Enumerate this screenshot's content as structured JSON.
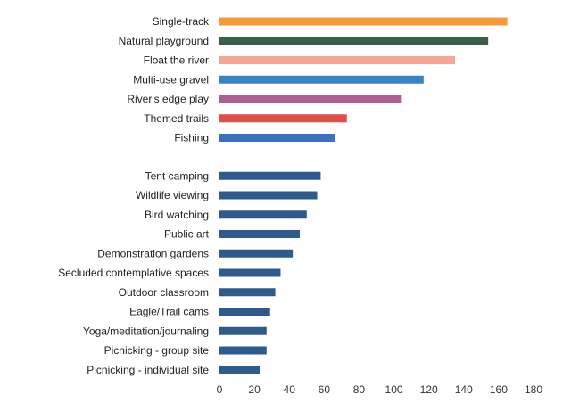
{
  "chart_data": {
    "type": "bar",
    "orientation": "horizontal",
    "title": "",
    "xlabel": "",
    "ylabel": "",
    "xlim": [
      0,
      180
    ],
    "xticks": [
      0,
      20,
      40,
      60,
      80,
      100,
      120,
      140,
      160,
      180
    ],
    "grid": false,
    "legend": "none",
    "groups": [
      {
        "bars": [
          {
            "label": "Single-track",
            "value": 165,
            "color": "#f59a38"
          },
          {
            "label": "Natural playground",
            "value": 154,
            "color": "#3a5e48"
          },
          {
            "label": "Float the river",
            "value": 135,
            "color": "#f5a594"
          },
          {
            "label": "Multi-use gravel",
            "value": 117,
            "color": "#3a82c8"
          },
          {
            "label": "River's edge play",
            "value": 104,
            "color": "#b05d94"
          },
          {
            "label": "Themed trails",
            "value": 73,
            "color": "#dc5048"
          },
          {
            "label": "Fishing",
            "value": 66,
            "color": "#3a72c0"
          }
        ]
      },
      {
        "bars": [
          {
            "label": "Tent camping",
            "value": 58,
            "color": "#2e5a8e"
          },
          {
            "label": "Wildlife viewing",
            "value": 56,
            "color": "#2e5a8e"
          },
          {
            "label": "Bird watching",
            "value": 50,
            "color": "#2e5a8e"
          },
          {
            "label": "Public art",
            "value": 46,
            "color": "#2e5a8e"
          },
          {
            "label": "Demonstration gardens",
            "value": 42,
            "color": "#2e5a8e"
          },
          {
            "label": "Secluded contemplative spaces",
            "value": 35,
            "color": "#2e5a8e"
          },
          {
            "label": "Outdoor classroom",
            "value": 32,
            "color": "#2e5a8e"
          },
          {
            "label": "Eagle/Trail cams",
            "value": 29,
            "color": "#2e5a8e"
          },
          {
            "label": "Yoga/meditation/journaling",
            "value": 27,
            "color": "#2e5a8e"
          },
          {
            "label": "Picnicking - group site",
            "value": 27,
            "color": "#2e5a8e"
          },
          {
            "label": "Picnicking - individual site",
            "value": 23,
            "color": "#2e5a8e"
          }
        ]
      }
    ]
  }
}
